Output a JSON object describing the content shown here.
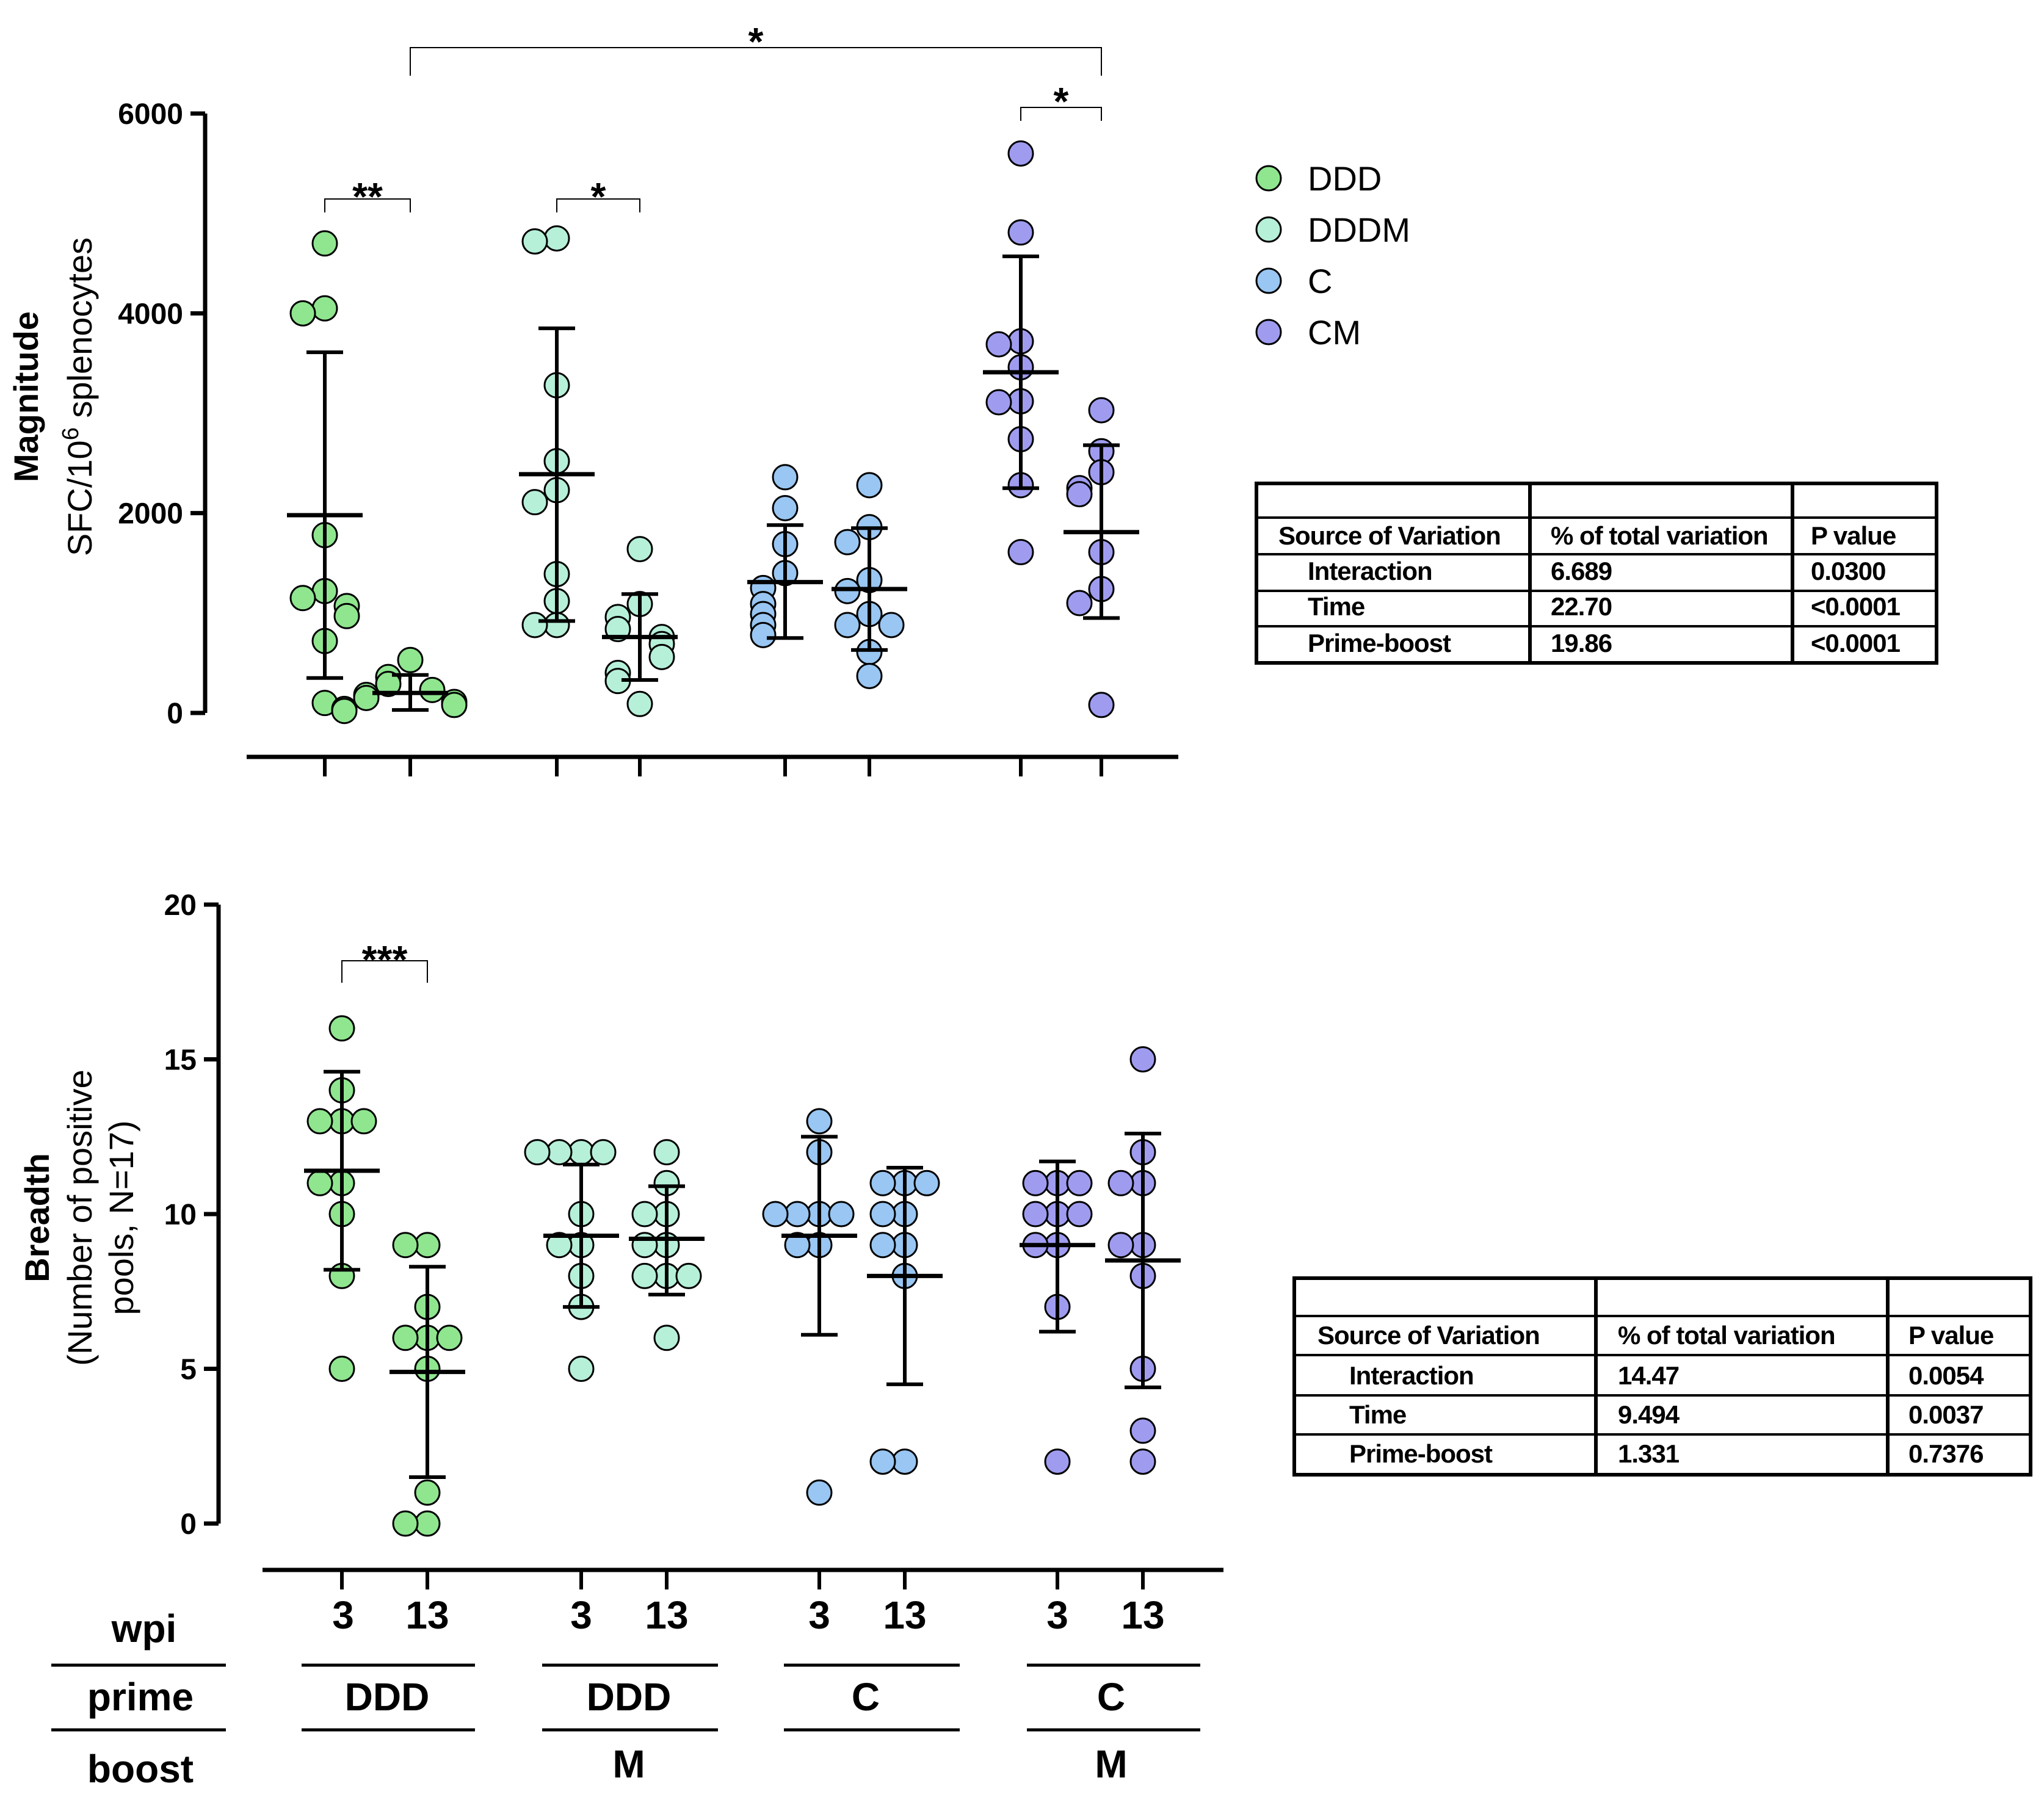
{
  "colors": {
    "DDD": "#8fe68f",
    "DDDM": "#b6f0d9",
    "C": "#99c6f2",
    "CM": "#9f9cf0",
    "axis": "#000000"
  },
  "legend": {
    "items": [
      {
        "label": "DDD",
        "color": "#8fe68f"
      },
      {
        "label": "DDDM",
        "color": "#b6f0d9"
      },
      {
        "label": "C",
        "color": "#99c6f2"
      },
      {
        "label": "CM",
        "color": "#9f9cf0"
      }
    ]
  },
  "footer": {
    "wpi_label": "wpi",
    "prime_label": "prime",
    "boost_label": "boost",
    "groups": [
      {
        "wpi": [
          "3",
          "13"
        ],
        "prime": "DDD",
        "boost": ""
      },
      {
        "wpi": [
          "3",
          "13"
        ],
        "prime": "DDD",
        "boost": "M"
      },
      {
        "wpi": [
          "3",
          "13"
        ],
        "prime": "C",
        "boost": ""
      },
      {
        "wpi": [
          "3",
          "13"
        ],
        "prime": "C",
        "boost": "M"
      }
    ]
  },
  "tables": {
    "magnitude": {
      "headers": [
        "Source of Variation",
        "% of total variation",
        "P value"
      ],
      "rows": [
        [
          "Interaction",
          "6.689",
          "0.0300"
        ],
        [
          "Time",
          "22.70",
          "<0.0001"
        ],
        [
          "Prime-boost",
          "19.86",
          "<0.0001"
        ]
      ]
    },
    "breadth": {
      "headers": [
        "Source of Variation",
        "% of total variation",
        "P value"
      ],
      "rows": [
        [
          "Interaction",
          "14.47",
          "0.0054"
        ],
        [
          "Time",
          "9.494",
          "0.0037"
        ],
        [
          "Prime-boost",
          "1.331",
          "0.7376"
        ]
      ]
    }
  },
  "chart_data": [
    {
      "type": "scatter",
      "panel": "magnitude",
      "ylabel_bold": "Magnitude",
      "ylabel_base": "SFC/10",
      "ylabel_sup": "6",
      "ylabel_tail": " splenocytes",
      "ylim": [
        0,
        6000
      ],
      "yticks": [
        0,
        2000,
        4000,
        6000
      ],
      "ytick_labels": [
        "0",
        "2000",
        "4000",
        "6000"
      ],
      "groups": [
        {
          "name": "DDD 3",
          "series": "DDD",
          "values": [
            4700,
            4050,
            4000,
            1780,
            1220,
            1150,
            1070,
            970,
            720,
            100
          ],
          "mean": 1980,
          "sd_low": 350,
          "sd_high": 3610
        },
        {
          "name": "DDD 13",
          "series": "DDD",
          "values": [
            530,
            360,
            290,
            230,
            180,
            150,
            110,
            80,
            40,
            20
          ],
          "mean": 200,
          "sd_low": 30,
          "sd_high": 380
        },
        {
          "name": "DDDM 3",
          "series": "DDDM",
          "values": [
            4750,
            4720,
            3280,
            2520,
            2230,
            2110,
            1390,
            1120,
            880,
            880
          ],
          "mean": 2390,
          "sd_low": 920,
          "sd_high": 3850
        },
        {
          "name": "DDDM 13",
          "series": "DDDM",
          "values": [
            1640,
            1090,
            960,
            840,
            760,
            690,
            560,
            400,
            320,
            90
          ],
          "mean": 760,
          "sd_low": 330,
          "sd_high": 1190
        },
        {
          "name": "C 3",
          "series": "C",
          "values": [
            2360,
            2050,
            1690,
            1400,
            1250,
            1090,
            990,
            880,
            780
          ],
          "mean": 1310,
          "sd_low": 750,
          "sd_high": 1880
        },
        {
          "name": "C 13",
          "series": "C",
          "values": [
            2280,
            1860,
            1710,
            1330,
            1220,
            990,
            880,
            880,
            610,
            370
          ],
          "mean": 1240,
          "sd_low": 630,
          "sd_high": 1850
        },
        {
          "name": "CM 3",
          "series": "CM",
          "values": [
            5600,
            4810,
            3720,
            3690,
            3460,
            3120,
            3110,
            2740,
            2280,
            1610
          ],
          "mean": 3410,
          "sd_low": 2250,
          "sd_high": 4570
        },
        {
          "name": "CM 13",
          "series": "CM",
          "values": [
            3030,
            2620,
            2410,
            2250,
            2190,
            1610,
            1240,
            1100,
            80
          ],
          "mean": 1810,
          "sd_low": 950,
          "sd_high": 2680
        }
      ],
      "comparisons": [
        {
          "from": 0,
          "to": 1,
          "label": "**"
        },
        {
          "from": 2,
          "to": 3,
          "label": "*"
        },
        {
          "from": 6,
          "to": 7,
          "label": "*"
        },
        {
          "from": 1,
          "to": 7,
          "label": "*"
        }
      ]
    },
    {
      "type": "scatter",
      "panel": "breadth",
      "ylabel_bold": "Breadth",
      "ylabel_line1": "(Number of positive",
      "ylabel_line2": "pools, N=17)",
      "ylim": [
        0,
        20
      ],
      "yticks": [
        0,
        5,
        10,
        15,
        20
      ],
      "ytick_labels": [
        "0",
        "5",
        "10",
        "15",
        "20"
      ],
      "groups": [
        {
          "name": "DDD 3",
          "series": "DDD",
          "values": [
            16,
            14,
            13,
            13,
            13,
            11,
            11,
            10,
            8,
            5
          ],
          "mean": 11.4,
          "sd_low": 8.2,
          "sd_high": 14.6
        },
        {
          "name": "DDD 13",
          "series": "DDD",
          "values": [
            9,
            9,
            7,
            6,
            6,
            6,
            5,
            1,
            0,
            0
          ],
          "mean": 4.9,
          "sd_low": 1.5,
          "sd_high": 8.3
        },
        {
          "name": "DDDM 3",
          "series": "DDDM",
          "values": [
            12,
            12,
            12,
            12,
            10,
            9,
            9,
            8,
            7,
            5
          ],
          "mean": 9.3,
          "sd_low": 7.0,
          "sd_high": 11.6
        },
        {
          "name": "DDDM 13",
          "series": "DDDM",
          "values": [
            12,
            11,
            10,
            10,
            9,
            9,
            8,
            8,
            8,
            6
          ],
          "mean": 9.2,
          "sd_low": 7.4,
          "sd_high": 10.9
        },
        {
          "name": "C 3",
          "series": "C",
          "values": [
            13,
            12,
            10,
            10,
            10,
            10,
            9,
            9,
            1
          ],
          "mean": 9.3,
          "sd_low": 6.1,
          "sd_high": 12.5
        },
        {
          "name": "C 13",
          "series": "C",
          "values": [
            11,
            11,
            11,
            10,
            10,
            9,
            9,
            8,
            2,
            2
          ],
          "mean": 8.0,
          "sd_low": 4.5,
          "sd_high": 11.5
        },
        {
          "name": "CM 3",
          "series": "CM",
          "values": [
            11,
            11,
            11,
            10,
            10,
            10,
            9,
            9,
            7,
            2
          ],
          "mean": 9.0,
          "sd_low": 6.2,
          "sd_high": 11.7
        },
        {
          "name": "CM 13",
          "series": "CM",
          "values": [
            15,
            12,
            11,
            11,
            9,
            9,
            8,
            5,
            3,
            2
          ],
          "mean": 8.5,
          "sd_low": 4.4,
          "sd_high": 12.6
        }
      ],
      "comparisons": [
        {
          "from": 0,
          "to": 1,
          "label": "***"
        }
      ]
    }
  ]
}
